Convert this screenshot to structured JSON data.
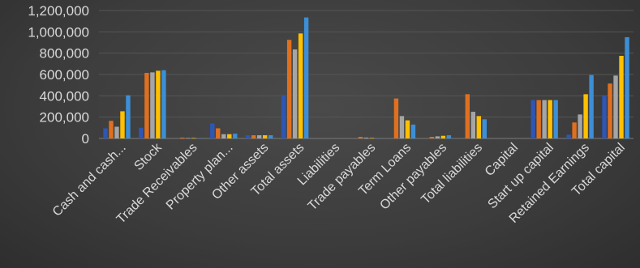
{
  "chart_data": {
    "type": "bar",
    "title": "",
    "xlabel": "",
    "ylabel": "",
    "ylim": [
      0,
      1200000
    ],
    "yticks": [
      0,
      200000,
      400000,
      600000,
      800000,
      1000000,
      1200000
    ],
    "ytick_labels": [
      "0",
      "200,000",
      "400,000",
      "600,000",
      "800,000",
      "1,000,000",
      "1,200,000"
    ],
    "grid": true,
    "legend": "none",
    "categories": [
      "Cash and cash...",
      "Stock",
      "Trade Receivables",
      "Property plan...",
      "Other assets",
      "Total assets",
      "Liabilities",
      "Trade payables",
      "Term Loans",
      "Other payables",
      "Total liabilities",
      "Capital",
      "Start up capital",
      "Retained Earnings",
      "Total capital"
    ],
    "series": [
      {
        "color": "#2e56b5",
        "values": [
          95000,
          100000,
          0,
          140000,
          30000,
          405000,
          0,
          0,
          0,
          0,
          0,
          0,
          360000,
          35000,
          405000
        ]
      },
      {
        "color": "#e0701e",
        "values": [
          165000,
          615000,
          8000,
          95000,
          30000,
          925000,
          0,
          15000,
          375000,
          15000,
          415000,
          0,
          360000,
          150000,
          515000
        ]
      },
      {
        "color": "#a5a5a5",
        "values": [
          110000,
          620000,
          5000,
          40000,
          30000,
          835000,
          0,
          8000,
          210000,
          20000,
          250000,
          0,
          360000,
          225000,
          590000
        ]
      },
      {
        "color": "#ffc000",
        "values": [
          255000,
          635000,
          5000,
          40000,
          30000,
          985000,
          0,
          5000,
          170000,
          25000,
          210000,
          0,
          360000,
          415000,
          775000
        ]
      },
      {
        "color": "#3c8fd6",
        "values": [
          405000,
          640000,
          3000,
          45000,
          30000,
          1135000,
          0,
          3000,
          130000,
          30000,
          180000,
          0,
          360000,
          595000,
          950000
        ]
      }
    ]
  }
}
